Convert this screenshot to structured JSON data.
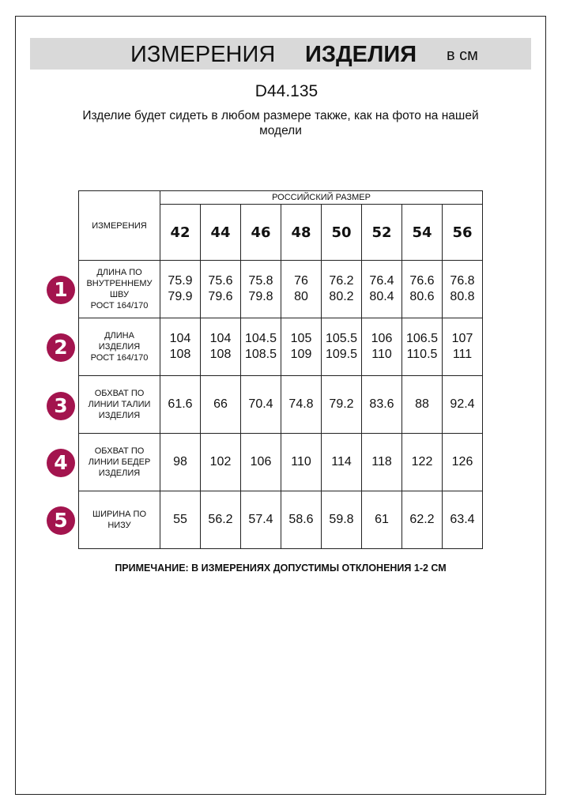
{
  "header": {
    "title_regular": "ИЗМЕРЕНИЯ",
    "title_bold": "ИЗДЕЛИЯ",
    "unit": "в см"
  },
  "article": "D44.135",
  "description": "Изделие будет сидеть в любом размере также, как на фото на нашей модели",
  "table": {
    "measure_header": "ИЗМЕРЕНИЯ",
    "size_group": "РОССИЙСКИЙ РАЗМЕР",
    "sizes": [
      "42",
      "44",
      "46",
      "48",
      "50",
      "52",
      "54",
      "56"
    ],
    "rows": [
      {
        "badge": "1",
        "label": [
          "ДЛИНА ПО",
          "ВНУТРЕННЕМУ",
          "ШВУ",
          "РОСТ 164/170"
        ],
        "values": [
          [
            "75.9",
            "79.9"
          ],
          [
            "75.6",
            "79.6"
          ],
          [
            "75.8",
            "79.8"
          ],
          [
            "76",
            "80"
          ],
          [
            "76.2",
            "80.2"
          ],
          [
            "76.4",
            "80.4"
          ],
          [
            "76.6",
            "80.6"
          ],
          [
            "76.8",
            "80.8"
          ]
        ]
      },
      {
        "badge": "2",
        "label": [
          "ДЛИНА",
          "ИЗДЕЛИЯ",
          "РОСТ 164/170"
        ],
        "values": [
          [
            "104",
            "108"
          ],
          [
            "104",
            "108"
          ],
          [
            "104.5",
            "108.5"
          ],
          [
            "105",
            "109"
          ],
          [
            "105.5",
            "109.5"
          ],
          [
            "106",
            "110"
          ],
          [
            "106.5",
            "110.5"
          ],
          [
            "107",
            "111"
          ]
        ]
      },
      {
        "badge": "3",
        "label": [
          "ОБХВАТ ПО",
          "ЛИНИИ ТАЛИИ",
          "ИЗДЕЛИЯ"
        ],
        "values": [
          [
            "61.6"
          ],
          [
            "66"
          ],
          [
            "70.4"
          ],
          [
            "74.8"
          ],
          [
            "79.2"
          ],
          [
            "83.6"
          ],
          [
            "88"
          ],
          [
            "92.4"
          ]
        ]
      },
      {
        "badge": "4",
        "label": [
          "ОБХВАТ ПО",
          "ЛИНИИ БЕДЕР",
          "ИЗДЕЛИЯ"
        ],
        "values": [
          [
            "98"
          ],
          [
            "102"
          ],
          [
            "106"
          ],
          [
            "110"
          ],
          [
            "114"
          ],
          [
            "118"
          ],
          [
            "122"
          ],
          [
            "126"
          ]
        ]
      },
      {
        "badge": "5",
        "label": [
          "ШИРИНА ПО",
          "НИЗУ"
        ],
        "values": [
          [
            "55"
          ],
          [
            "56.2"
          ],
          [
            "57.4"
          ],
          [
            "58.6"
          ],
          [
            "59.8"
          ],
          [
            "61"
          ],
          [
            "62.2"
          ],
          [
            "63.4"
          ]
        ]
      }
    ]
  },
  "note": "ПРИМЕЧАНИЕ: В ИЗМЕРЕНИЯХ ДОПУСТИМЫ ОТКЛОНЕНИЯ 1-2 СМ",
  "colors": {
    "badge": "#a3144e",
    "banner": "#d9d9d9"
  }
}
